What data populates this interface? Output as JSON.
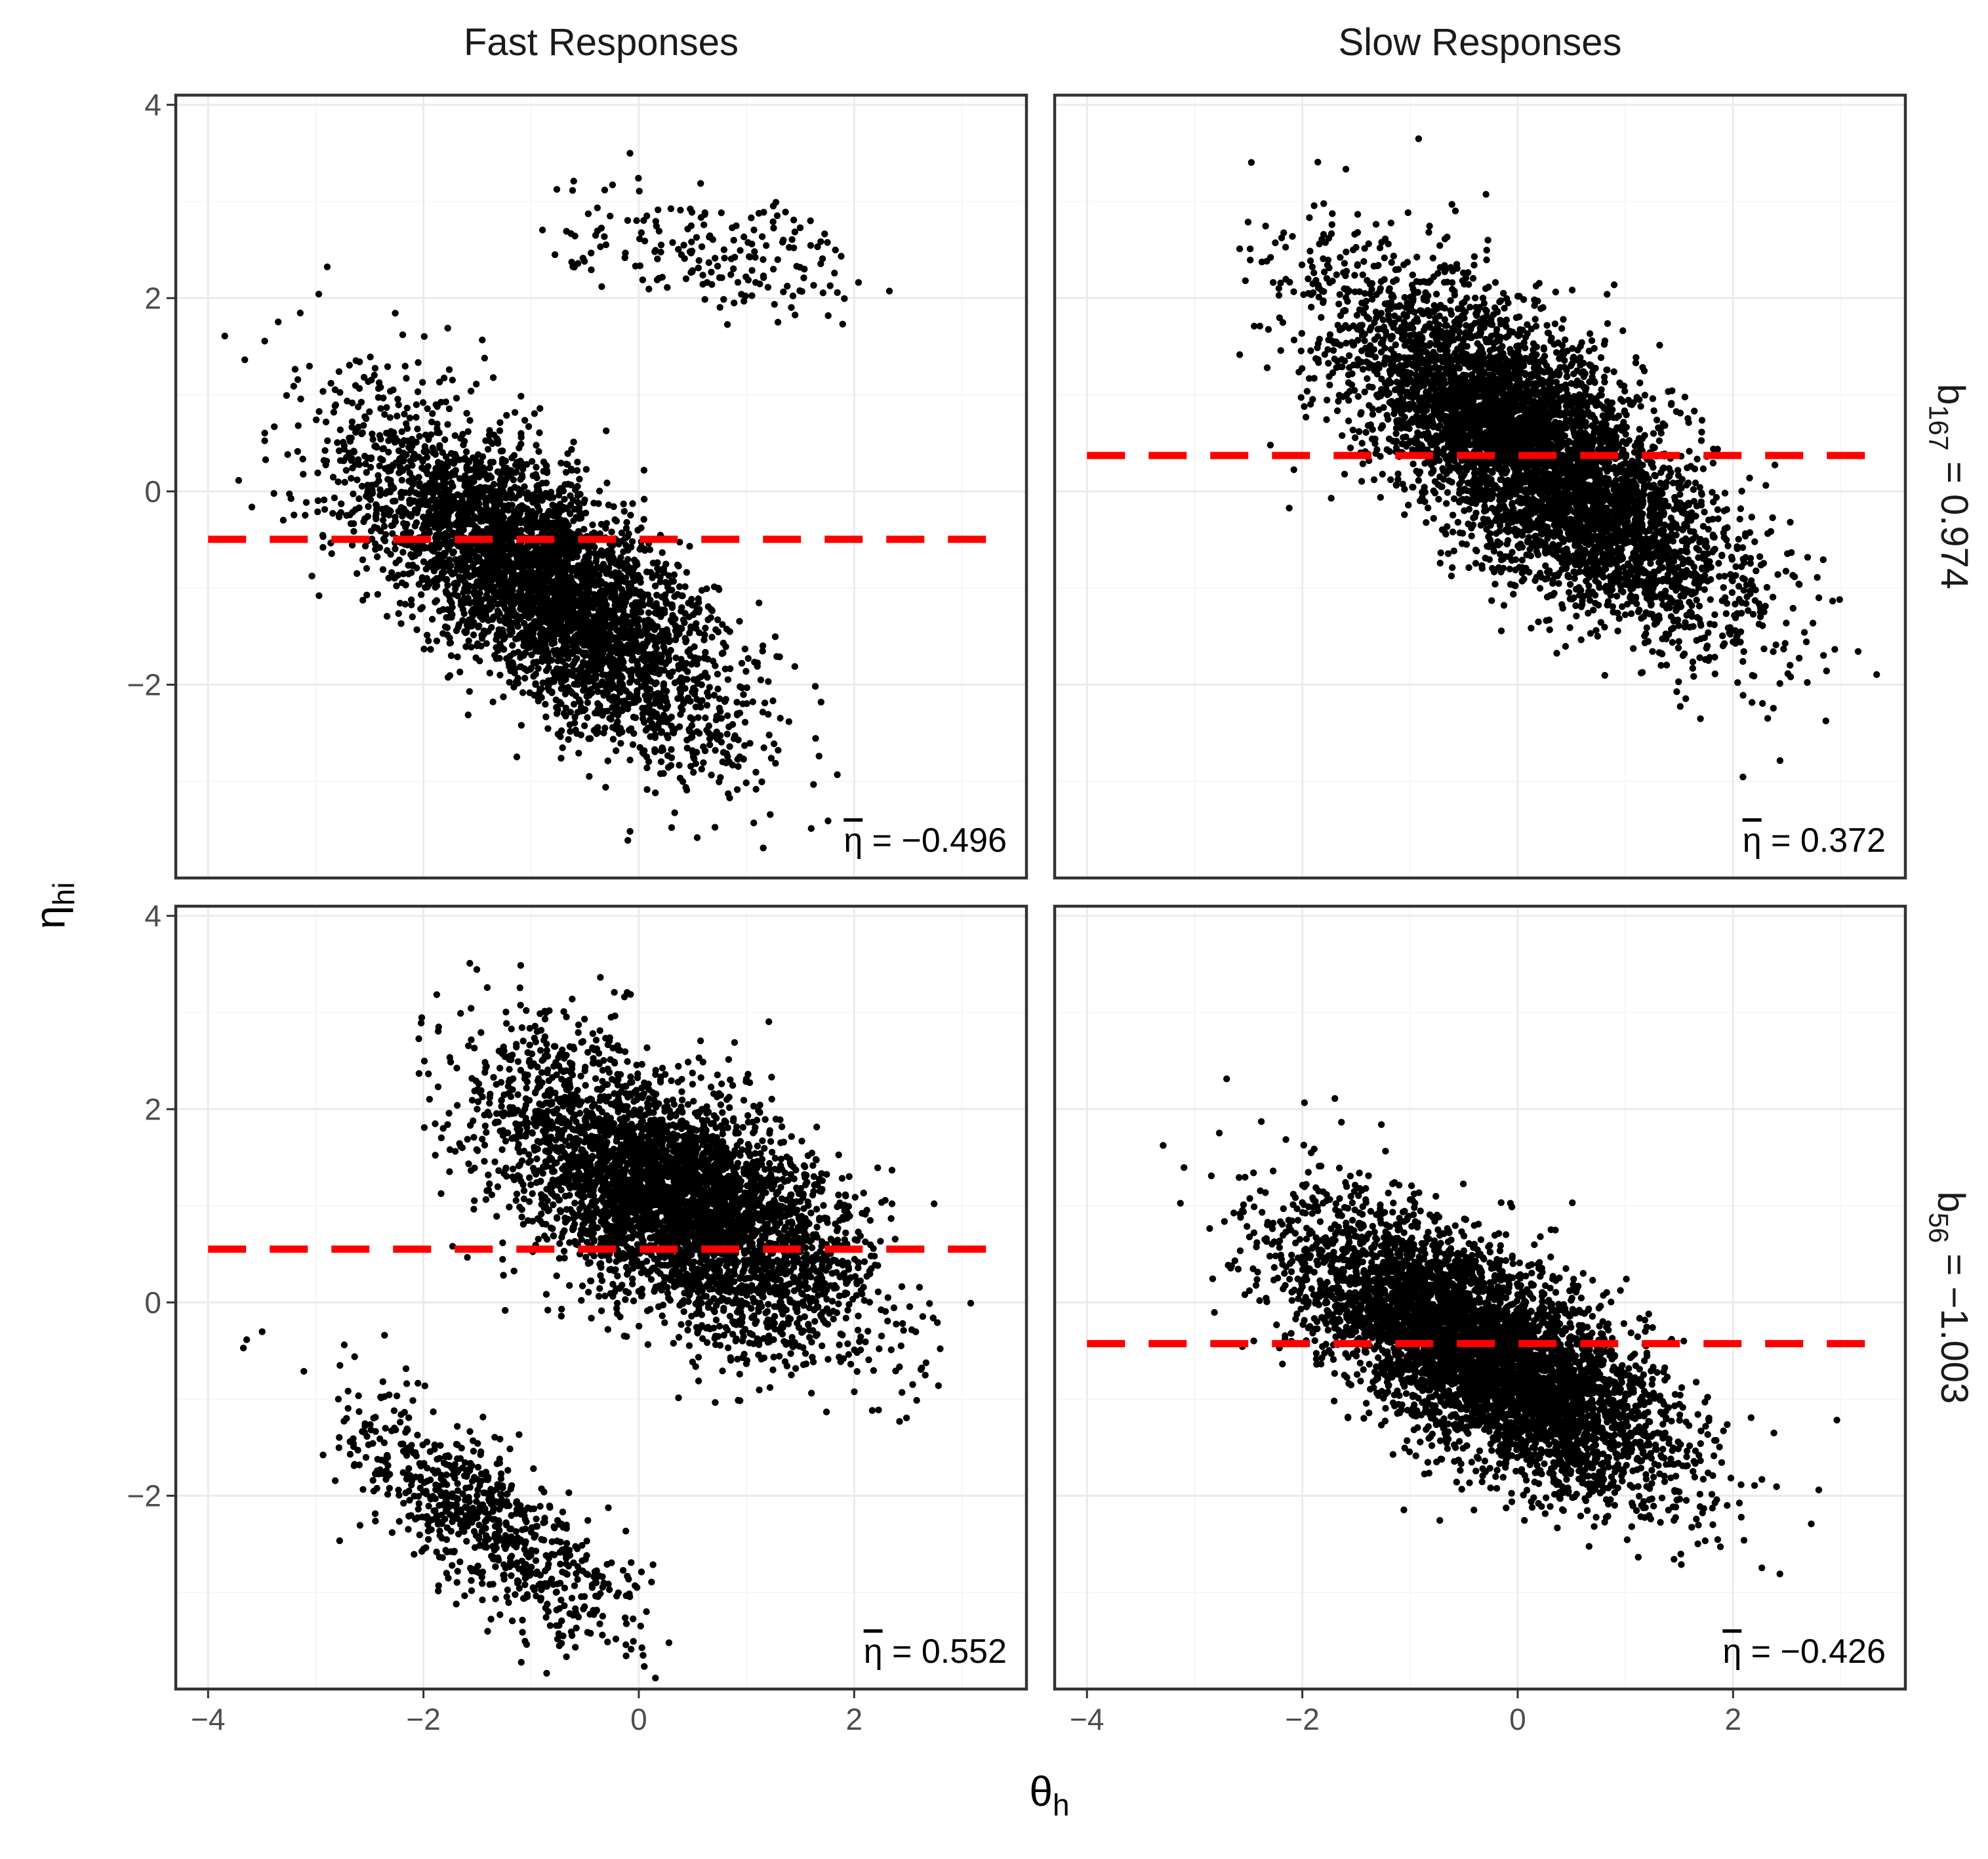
{
  "chart_data": {
    "type": "scatter",
    "layout": "facet_grid 2x2",
    "col_strips": [
      "Fast Responses",
      "Slow Responses"
    ],
    "row_strips": [
      {
        "base": "b",
        "sub": "167",
        "rest": " = 0.974"
      },
      {
        "base": "b",
        "sub": "56",
        "rest": " = −1.003"
      }
    ],
    "xlabel": {
      "base": "θ",
      "sub": "h"
    },
    "ylabel": {
      "base": "η",
      "sub": "hi"
    },
    "xlim": [
      -4.3,
      3.6
    ],
    "ylim": [
      -4.0,
      4.1
    ],
    "x_ticks": [
      -4,
      -2,
      0,
      2
    ],
    "y_ticks": [
      -2,
      0,
      2,
      4
    ],
    "x_tick_labels": [
      "−4",
      "−2",
      "0",
      "2"
    ],
    "y_tick_labels": [
      "−2",
      "0",
      "2",
      "4"
    ],
    "grid": true,
    "point_color": "#000000",
    "mean_line_color": "#ff0000",
    "mean_label_symbol": "η",
    "panels": [
      {
        "row": 0,
        "col": 0,
        "mean_eta": -0.496,
        "mean_label": " = −0.496",
        "line_x": [
          -4.0,
          3.4
        ],
        "clusters": [
          {
            "n": 4200,
            "x_mean": -0.9,
            "x_sd": 0.85,
            "x_range": [
              -3.9,
              1.9
            ],
            "slope": -0.7,
            "intercept": -0.95,
            "y_sd": 0.58
          },
          {
            "n": 190,
            "x_mean": 0.7,
            "x_sd": 0.75,
            "x_range": [
              -0.9,
              2.7
            ],
            "slope": -0.2,
            "intercept": 2.45,
            "y_sd": 0.3
          }
        ]
      },
      {
        "row": 0,
        "col": 1,
        "mean_eta": 0.372,
        "mean_label": " = 0.372",
        "line_x": [
          -4.0,
          3.4
        ],
        "clusters": [
          {
            "n": 5200,
            "x_mean": 0.15,
            "x_sd": 0.9,
            "x_range": [
              -2.7,
              3.4
            ],
            "slope": -0.7,
            "intercept": 0.4,
            "y_sd": 0.62
          }
        ]
      },
      {
        "row": 1,
        "col": 0,
        "mean_eta": 0.552,
        "mean_label": " = 0.552",
        "line_x": [
          -4.0,
          3.4
        ],
        "clusters": [
          {
            "n": 4200,
            "x_mean": 0.35,
            "x_sd": 0.85,
            "x_range": [
              -2.1,
              3.3
            ],
            "slope": -0.5,
            "intercept": 1.05,
            "y_sd": 0.58
          },
          {
            "n": 750,
            "x_mean": -1.4,
            "x_sd": 0.7,
            "x_range": [
              -3.9,
              0.6
            ],
            "slope": -0.75,
            "intercept": -2.3,
            "y_sd": 0.42
          }
        ]
      },
      {
        "row": 1,
        "col": 1,
        "mean_eta": -0.426,
        "mean_label": " = −0.426",
        "line_x": [
          -4.0,
          3.4
        ],
        "clusters": [
          {
            "n": 5200,
            "x_mean": -0.3,
            "x_sd": 0.85,
            "x_range": [
              -3.3,
              3.4
            ],
            "slope": -0.55,
            "intercept": -0.55,
            "y_sd": 0.52
          }
        ]
      }
    ]
  }
}
